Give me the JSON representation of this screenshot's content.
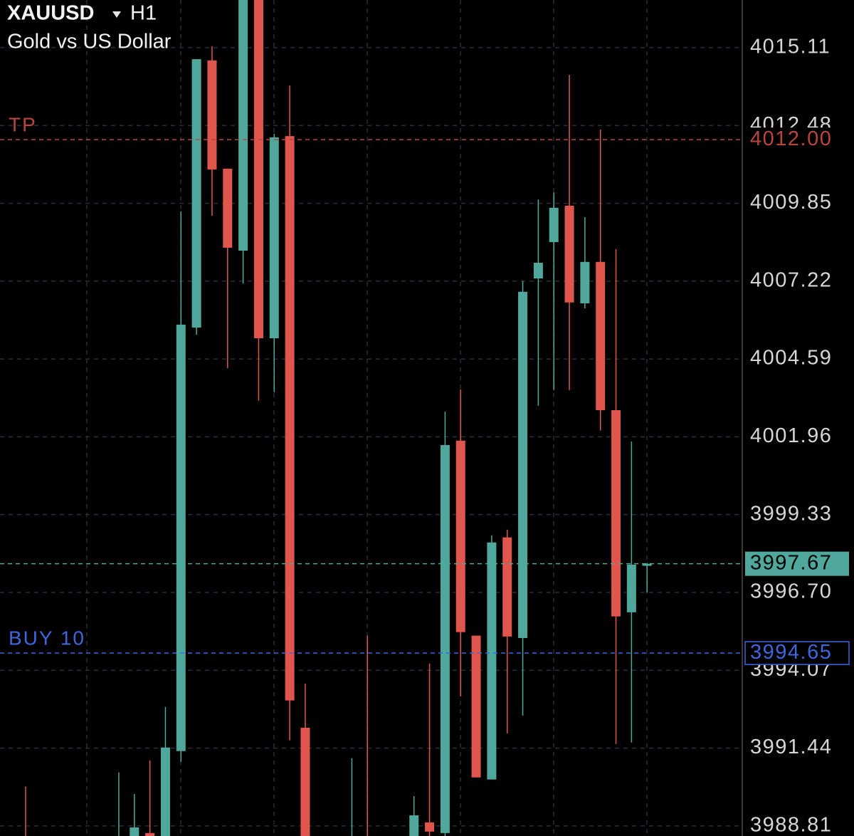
{
  "header": {
    "symbol": "XAUUSD",
    "timeframe": "H1",
    "description": "Gold vs US Dollar"
  },
  "chart_data": {
    "type": "candlestick",
    "categories": [
      null,
      null,
      null,
      null,
      null,
      null,
      null,
      null,
      null,
      null,
      null,
      null,
      null,
      null,
      null,
      null,
      null,
      null,
      null,
      null,
      null,
      null,
      null,
      null,
      null,
      null,
      null,
      null,
      null,
      null,
      null,
      null,
      null,
      null,
      null,
      null,
      null,
      null,
      null,
      null,
      null
    ],
    "open": [
      3988.3,
      null,
      null,
      null,
      null,
      null,
      3987.6,
      3988.2,
      3988.57,
      3988.3,
      3991.34,
      4005.65,
      4014.68,
      4011.02,
      4008.25,
      4017.3,
      4005.29,
      4012.12,
      3992.13,
      null,
      null,
      3987.6,
      3988.3,
      null,
      null,
      3988.1,
      3988.93,
      3988.57,
      4001.83,
      3995.24,
      3990.38,
      3998.56,
      3995.16,
      4007.31,
      4008.54,
      4009.77,
      4006.47,
      4007.87,
      4002.86,
      3996.03,
      3997.6
    ],
    "high": [
      3990.14,
      null,
      null,
      null,
      null,
      null,
      3990.62,
      3989.89,
      3991.03,
      3992.83,
      4009.58,
      4014.72,
      4015.16,
      4011.02,
      4017.8,
      4017.8,
      4012.2,
      4013.83,
      3993.62,
      null,
      null,
      3991.1,
      3995.24,
      null,
      null,
      3989.82,
      3994.3,
      4002.81,
      4003.56,
      3995.24,
      3998.63,
      3998.82,
      4007.22,
      4009.98,
      4010.22,
      4014.19,
      4009.38,
      4012.34,
      4008.3,
      4001.8,
      3997.7
    ],
    "low": [
      3987.5,
      null,
      null,
      null,
      null,
      null,
      3987.3,
      3987.9,
      3987.8,
      3988.0,
      3990.98,
      4005.41,
      4009.43,
      4004.28,
      4007.14,
      4003.18,
      4003.47,
      3991.7,
      3987.4,
      null,
      null,
      3987.2,
      3987.3,
      null,
      null,
      3987.8,
      3988.3,
      3988.4,
      3993.19,
      3990.45,
      3990.38,
      3991.94,
      3992.54,
      4003.01,
      4003.54,
      4003.54,
      4006.3,
      4002.17,
      3991.58,
      3991.63,
      3996.7
    ],
    "close": [
      3987.9,
      null,
      null,
      null,
      null,
      null,
      3988.2,
      3988.76,
      3988.2,
      3991.46,
      4005.75,
      4014.72,
      4010.99,
      4008.35,
      4017.3,
      4005.29,
      4012.08,
      3993.05,
      3987.8,
      null,
      null,
      3988.1,
      3987.7,
      null,
      null,
      3989.17,
      3988.62,
      4001.68,
      3995.36,
      3990.45,
      3998.39,
      3995.21,
      4006.86,
      4007.84,
      4009.7,
      4006.5,
      4007.87,
      4002.86,
      3995.89,
      3997.64,
      3997.67
    ],
    "up_color": "#4fa89b",
    "down_color": "#e0564d",
    "ylim": [
      3988.47,
      4016.72
    ],
    "yticks": [
      4015.11,
      4012.48,
      4009.85,
      4007.22,
      4004.59,
      4001.96,
      3999.33,
      {
        "value": 3996.7,
        "label": "3996.70"
      },
      3994.07,
      3991.44,
      3988.81
    ],
    "grid": true,
    "price_lines": [
      {
        "name": "TP",
        "value": 4012,
        "value_label": "4012.00",
        "color": "#b8453d"
      },
      {
        "value": 3997.67,
        "color": "#4fa89b"
      },
      {
        "name": "BUY 10",
        "value": 3994.65,
        "color": "#3f66dc"
      }
    ]
  }
}
